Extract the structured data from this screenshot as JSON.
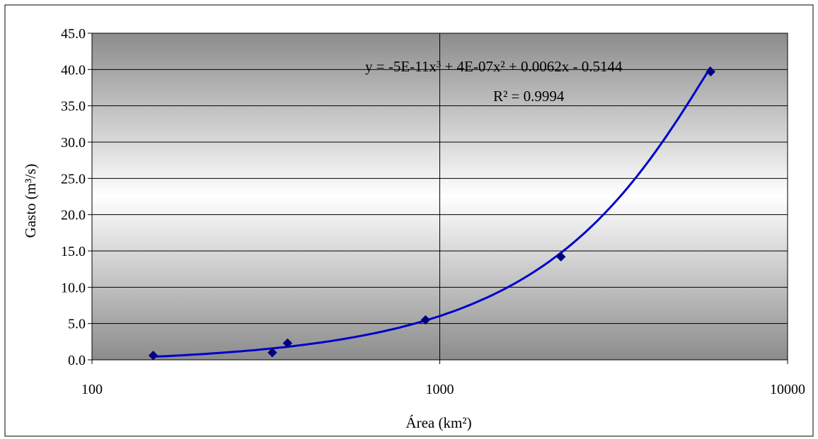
{
  "chart_data": {
    "type": "scatter",
    "x_scale": "log",
    "xlim": [
      100,
      10000
    ],
    "ylim": [
      0,
      45
    ],
    "x_ticks": [
      "100",
      "1000",
      "10000"
    ],
    "y_ticks": [
      "0.0",
      "5.0",
      "10.0",
      "15.0",
      "20.0",
      "25.0",
      "30.0",
      "35.0",
      "40.0",
      "45.0"
    ],
    "xlabel": "Área (km²)",
    "ylabel": "Gasto (m³/s)",
    "grid": true,
    "points": [
      {
        "x": 150,
        "y": 0.6
      },
      {
        "x": 330,
        "y": 1.0
      },
      {
        "x": 365,
        "y": 2.3
      },
      {
        "x": 910,
        "y": 5.5
      },
      {
        "x": 2230,
        "y": 14.2
      },
      {
        "x": 6010,
        "y": 39.7
      }
    ],
    "trendline": {
      "type": "polynomial",
      "order": 3,
      "equation": "y = -5E-11x³ + 4E-07x² + 0.0062x - 0.5144",
      "r_squared": "R² = 0.9994"
    },
    "colors": {
      "series": "#0000cc",
      "marker": "#000080",
      "grid": "#000000"
    }
  }
}
